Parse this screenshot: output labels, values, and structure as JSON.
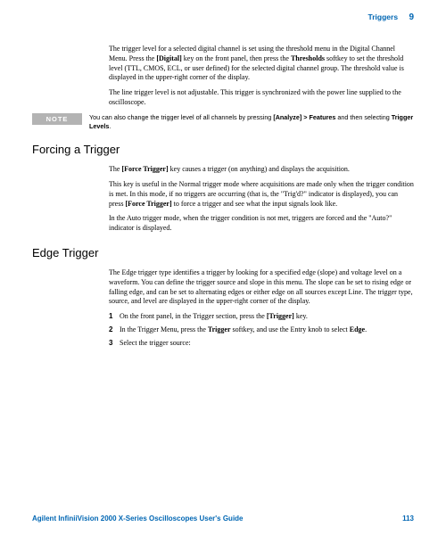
{
  "header": {
    "section": "Triggers",
    "chapter": "9"
  },
  "para1": "The trigger level for a selected digital channel is set using the threshold menu in the Digital Channel Menu. Press the ",
  "para1_b1": "[Digital]",
  "para1_c": " key on the front panel, then press the ",
  "para1_b2": "Thresholds",
  "para1_d": " softkey to set the threshold level (TTL, CMOS, ECL, or user defined) for the selected digital channel group. The threshold value is displayed in the upper-right corner of the display.",
  "para2": "The line trigger level is not adjustable. This trigger is synchronized with the power line supplied to the oscilloscope.",
  "note": {
    "label": "NOTE",
    "t1": "You can also change the trigger level of all channels by pressing ",
    "b1": "[Analyze] > Features",
    "t2": " and then selecting ",
    "b2": "Trigger Levels",
    "t3": "."
  },
  "h_forcing": "Forcing a Trigger",
  "f1a": "The ",
  "f1b": "[Force Trigger]",
  "f1c": " key causes a trigger (on anything) and displays the acquisition.",
  "f2a": "This key is useful in the Normal trigger mode where acquisitions are made only when the trigger condition is met. In this mode, if no triggers are occurring (that is, the \"Trig'd?\" indicator is displayed), you can press ",
  "f2b": "[Force Trigger]",
  "f2c": " to force a trigger and see what the input signals look like.",
  "f3": "In the Auto trigger mode, when the trigger condition is not met, triggers are forced and the \"Auto?\" indicator is displayed.",
  "h_edge": "Edge Trigger",
  "e1": "The Edge trigger type identifies a trigger by looking for a specified edge (slope) and voltage level on a waveform. You can define the trigger source and slope in this menu. The slope can be set to rising edge or falling edge, and can be set to alternating edges or either edge on all sources except Line. The trigger type, source, and level are displayed in the upper-right corner of the display.",
  "steps": [
    {
      "n": "1",
      "a": "On the front panel, in the Trigger section, press the ",
      "b": "[Trigger]",
      "c": " key."
    },
    {
      "n": "2",
      "a": "In the Trigger Menu, press the ",
      "b": "Trigger",
      "c": " softkey, and use the Entry knob to select ",
      "b2": "Edge",
      "d": "."
    },
    {
      "n": "3",
      "a": "Select the trigger source:",
      "b": "",
      "c": ""
    }
  ],
  "footer": {
    "title": "Agilent InfiniiVision 2000 X-Series Oscilloscopes User's Guide",
    "page": "113"
  }
}
